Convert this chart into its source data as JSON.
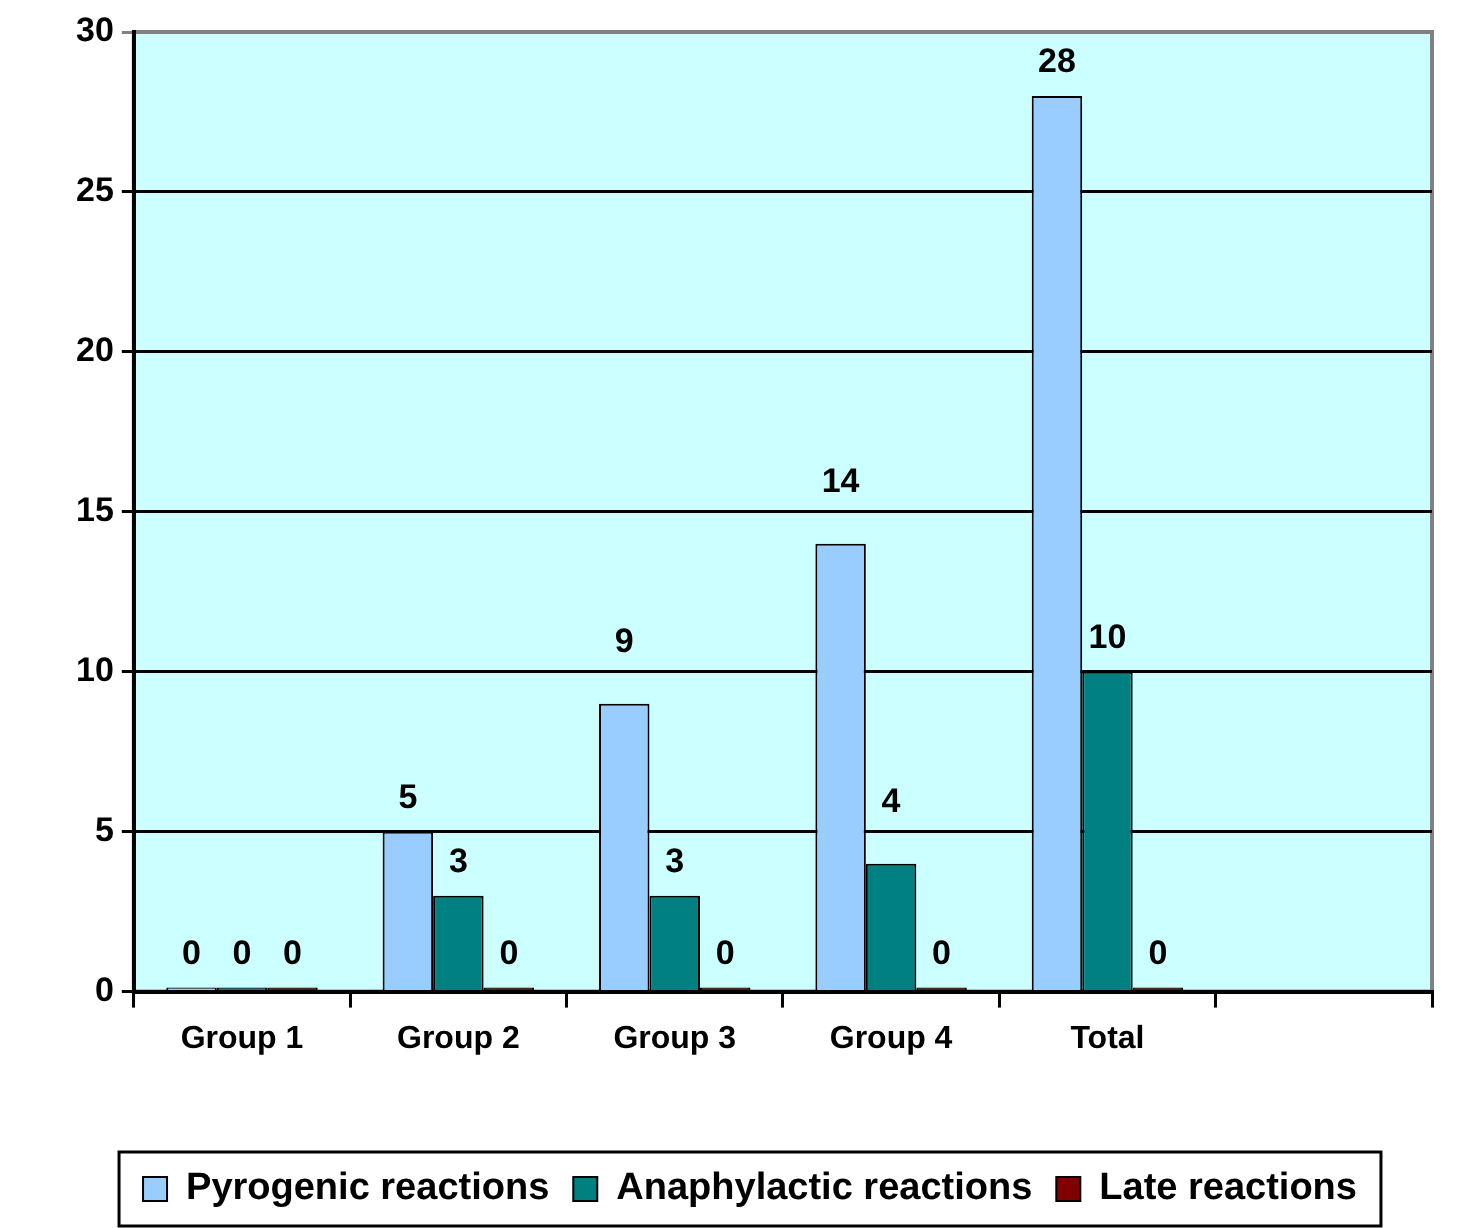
{
  "chart_data": {
    "type": "bar",
    "categories": [
      "Group 1",
      "Group 2",
      "Group 3",
      "Group 4",
      "Total",
      null
    ],
    "series": [
      {
        "name": "Pyrogenic reactions",
        "color": "#99ccff",
        "values": [
          0,
          5,
          9,
          14,
          28,
          null
        ]
      },
      {
        "name": "Anaphylactic reactions",
        "color": "#008080",
        "values": [
          0,
          3,
          3,
          4,
          10,
          null
        ]
      },
      {
        "name": "Late reactions",
        "color": "#800000",
        "values": [
          0,
          0,
          0,
          0,
          0,
          null
        ]
      }
    ],
    "ylim": [
      0,
      30
    ],
    "yticks": [
      0,
      5,
      10,
      15,
      20,
      25,
      30
    ],
    "grid": "y",
    "legend": "bottom",
    "data_labels": true
  }
}
